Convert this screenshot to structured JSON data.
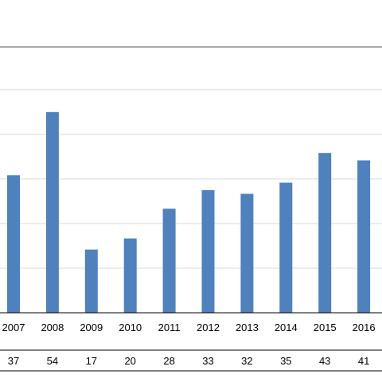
{
  "chart_data": {
    "type": "bar",
    "categories": [
      "2007",
      "2008",
      "2009",
      "2010",
      "2011",
      "2012",
      "2013",
      "2014",
      "2015",
      "2016"
    ],
    "values": [
      37,
      54,
      17,
      20,
      28,
      33,
      32,
      35,
      43,
      41
    ],
    "title": "",
    "xlabel": "",
    "ylabel": "",
    "ylim": [
      0,
      72
    ],
    "grid": true,
    "legend": "none",
    "data_table": true,
    "bar_color": "#4f81bd",
    "grid_color": "#d9d9d9",
    "axis_color": "#000000"
  }
}
